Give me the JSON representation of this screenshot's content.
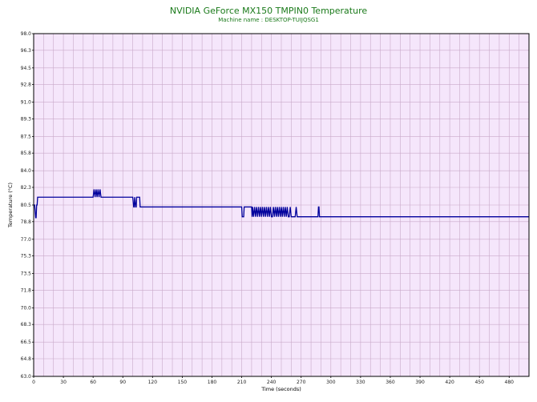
{
  "colors": {
    "title": "#1a7a1a",
    "plot_background": "#f5e6fb",
    "grid": "#c9a9c9",
    "series": "#00009c",
    "frame": "#000000"
  },
  "chart_data": {
    "type": "line",
    "title": "NVIDIA GeForce MX150 TMPIN0 Temperature",
    "subtitle": "Machine name : DESKTOP-TUIJQSG1",
    "xlabel": "Time (seconds)",
    "ylabel": "Temperature (°C)",
    "xlim": [
      0,
      500
    ],
    "ylim": [
      63.0,
      98.0
    ],
    "grid": true,
    "x_ticks": [
      0,
      30,
      60,
      90,
      120,
      150,
      180,
      210,
      240,
      270,
      300,
      330,
      360,
      390,
      420,
      450,
      480
    ],
    "x_tick_labels": [
      "0",
      "30",
      "60",
      "90",
      "120",
      "150",
      "180",
      "210",
      "240",
      "270",
      "300",
      "330",
      "360",
      "390",
      "420",
      "450",
      "480"
    ],
    "y_ticks": [
      63.0,
      64.8,
      66.5,
      68.3,
      70.0,
      71.8,
      73.5,
      75.3,
      77.0,
      78.8,
      80.5,
      82.3,
      84.0,
      85.8,
      87.5,
      89.3,
      91.0,
      92.8,
      94.5,
      96.3,
      98.0
    ],
    "y_tick_labels": [
      "63.0",
      "64.8",
      "66.5",
      "68.3",
      "70.0",
      "71.8",
      "73.5",
      "75.3",
      "77.0",
      "78.8",
      "80.5",
      "82.3",
      "84.0",
      "85.8",
      "87.5",
      "89.3",
      "91.0",
      "92.8",
      "94.5",
      "96.3",
      "98.0"
    ],
    "series": [
      {
        "x": [
          0,
          1,
          2,
          2.5,
          3,
          3.5,
          4,
          60,
          61,
          62,
          63,
          64,
          65,
          66,
          67,
          68,
          69,
          70,
          100,
          101,
          101.5,
          102,
          103,
          103.5,
          104,
          107,
          107.5,
          210,
          210.5,
          212,
          212.5,
          220,
          220.5,
          221,
          222,
          223,
          224,
          225,
          226,
          227,
          228,
          229,
          230,
          231,
          232,
          233,
          234,
          235,
          236,
          237,
          238,
          239,
          240,
          241,
          242,
          243,
          244,
          245,
          246,
          247,
          248,
          249,
          250,
          251,
          252,
          253,
          254,
          255,
          256,
          257,
          258,
          259,
          260,
          261,
          262,
          263,
          264,
          265,
          266,
          267,
          268,
          269,
          270,
          287,
          287.5,
          288,
          288.5,
          500
        ],
        "y": [
          80.5,
          80.5,
          79.2,
          79.2,
          80.5,
          80.5,
          81.3,
          81.3,
          82.1,
          81.3,
          82.1,
          81.3,
          82.1,
          81.3,
          82.1,
          81.3,
          81.3,
          81.3,
          81.3,
          80.3,
          80.3,
          81.3,
          80.3,
          80.3,
          81.3,
          81.3,
          80.3,
          80.3,
          79.3,
          79.3,
          80.3,
          80.3,
          79.3,
          80.3,
          79.3,
          80.3,
          79.3,
          80.3,
          79.3,
          80.3,
          79.3,
          80.3,
          79.3,
          80.3,
          79.3,
          80.3,
          79.3,
          80.3,
          79.3,
          80.3,
          79.3,
          80.3,
          79.3,
          79.3,
          80.3,
          79.3,
          80.3,
          79.3,
          80.3,
          79.3,
          80.3,
          79.3,
          80.3,
          79.3,
          80.3,
          79.3,
          80.3,
          79.3,
          80.3,
          79.3,
          79.3,
          80.3,
          79.3,
          79.3,
          79.3,
          79.3,
          79.3,
          80.3,
          79.3,
          79.3,
          79.3,
          79.3,
          79.3,
          79.3,
          80.3,
          80.3,
          79.3,
          79.3
        ]
      }
    ]
  }
}
